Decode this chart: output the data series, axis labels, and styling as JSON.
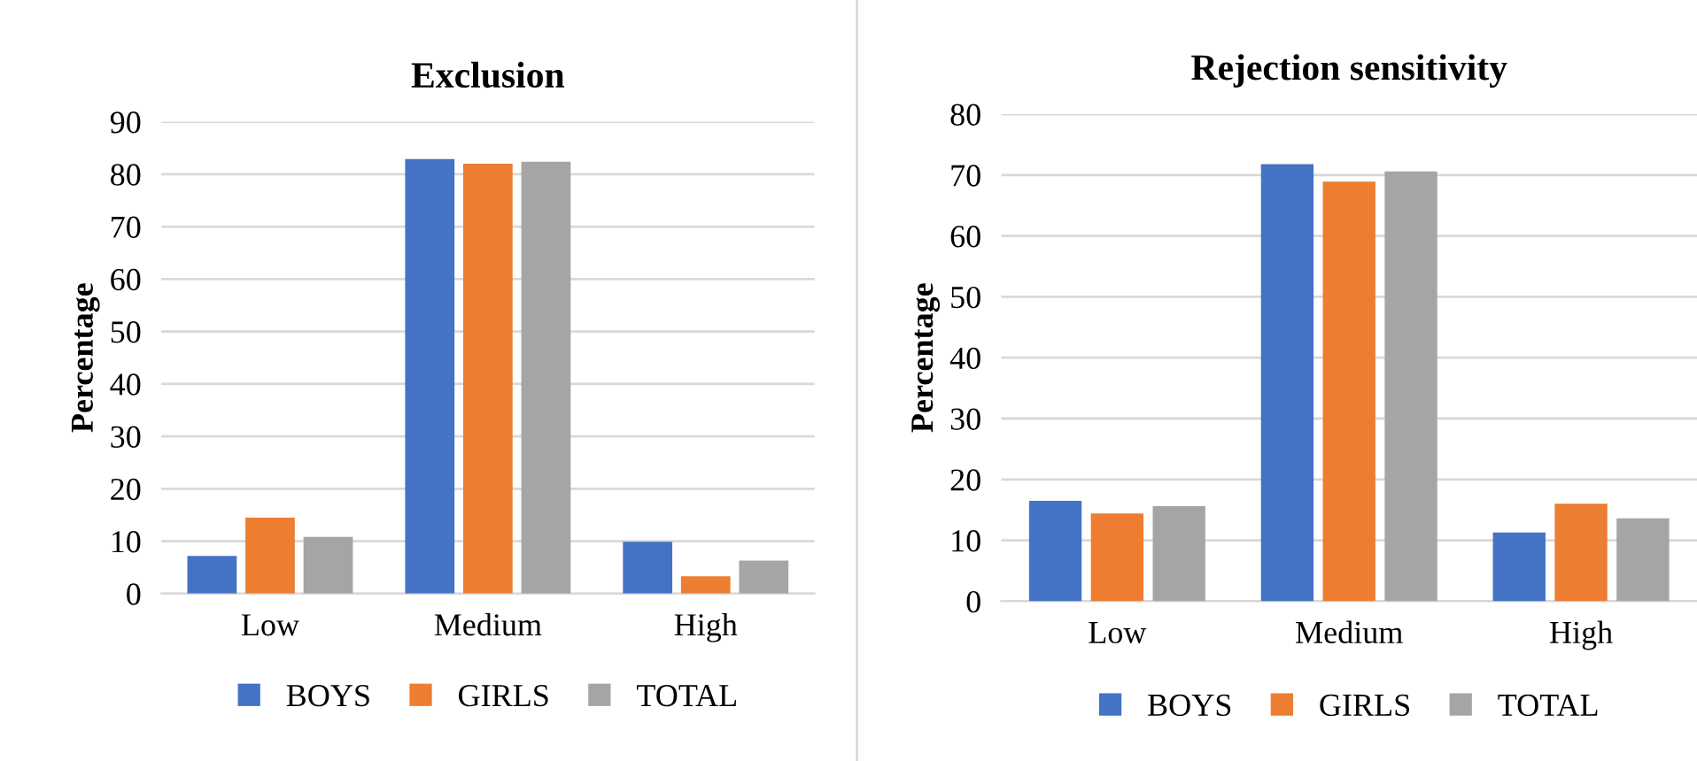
{
  "chart_data": [
    {
      "type": "bar",
      "title": "Exclusion",
      "ylabel": "Percentage",
      "categories": [
        "Low",
        "Medium",
        "High"
      ],
      "series": [
        {
          "name": "BOYS",
          "color": "#4472c4",
          "values": [
            7.2,
            82.9,
            9.9
          ]
        },
        {
          "name": "GIRLS",
          "color": "#ed7d31",
          "values": [
            14.5,
            82.0,
            3.3
          ]
        },
        {
          "name": "TOTAL",
          "color": "#a5a5a5",
          "values": [
            10.8,
            82.4,
            6.3
          ]
        }
      ],
      "ylim": [
        0,
        90
      ],
      "yticks": [
        0,
        10,
        20,
        30,
        40,
        50,
        60,
        70,
        80,
        90
      ],
      "grid": "y",
      "legend": "bottom"
    },
    {
      "type": "bar",
      "title": "Rejection sensitivity",
      "ylabel": "Percentage",
      "categories": [
        "Low",
        "Medium",
        "High"
      ],
      "series": [
        {
          "name": "BOYS",
          "color": "#4472c4",
          "values": [
            16.5,
            71.8,
            11.3
          ]
        },
        {
          "name": "GIRLS",
          "color": "#ed7d31",
          "values": [
            14.4,
            68.9,
            16.0
          ]
        },
        {
          "name": "TOTAL",
          "color": "#a5a5a5",
          "values": [
            15.6,
            70.6,
            13.6
          ]
        }
      ],
      "ylim": [
        0,
        80
      ],
      "yticks": [
        0,
        10,
        20,
        30,
        40,
        50,
        60,
        70,
        80
      ],
      "grid": "y",
      "legend": "bottom"
    }
  ]
}
